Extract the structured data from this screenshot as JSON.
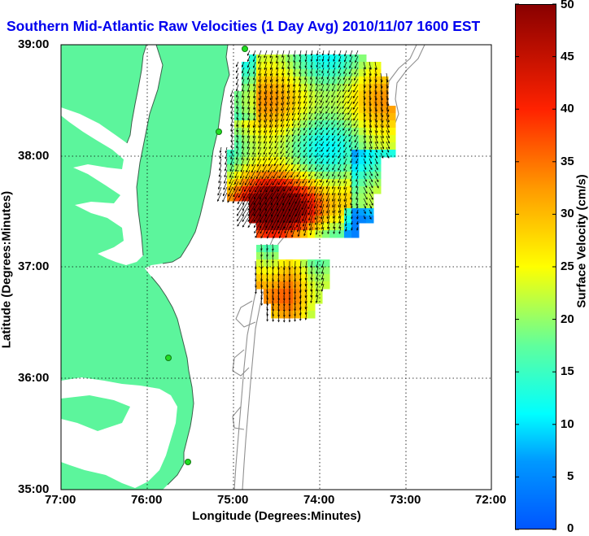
{
  "title": "Southern Mid-Atlantic Raw Velocities (1 Day Avg) 2010/11/07 1600 EST",
  "axes": {
    "xlabel": "Longitude (Degrees:Minutes)",
    "ylabel": "Latitude (Degrees:Minutes)",
    "x_ticks": [
      "77:00",
      "76:00",
      "75:00",
      "74:00",
      "73:00",
      "72:00"
    ],
    "y_ticks": [
      "39:00",
      "38:00",
      "37:00",
      "36:00",
      "35:00"
    ]
  },
  "colorbar": {
    "label": "Surface Velocity (cm/s)",
    "ticks": [
      "0",
      "5",
      "10",
      "15",
      "20",
      "25",
      "30",
      "35",
      "40",
      "45",
      "50"
    ],
    "min": 0,
    "max": 50
  },
  "colors": {
    "land": "#5cf59c",
    "ocean": "#ffffff",
    "coastline": "#3b5f4a",
    "bathymetry_contour": "#909090",
    "vector": "#000000",
    "station": "#22dd22",
    "title": "#0000ee"
  },
  "chart_data": {
    "type": "heatmap",
    "title": "Southern Mid-Atlantic Raw Velocities (1 Day Avg) 2010/11/07 1600 EST",
    "xlabel": "Longitude (Degrees:Minutes)",
    "ylabel": "Latitude (Degrees:Minutes)",
    "x_range_deg": [
      -77,
      -72
    ],
    "y_range_deg": [
      35,
      39
    ],
    "grid": true,
    "colorbar_label": "Surface Velocity (cm/s)",
    "colorbar_range": [
      0,
      50
    ],
    "stations": [
      {
        "lon": -75.1,
        "lat": 38.98
      },
      {
        "lon": -75.15,
        "lat": 38.23
      },
      {
        "lon": -75.75,
        "lat": 36.18
      },
      {
        "lon": -75.52,
        "lat": 35.24
      }
    ],
    "velocity_regions": [
      {
        "name": "northern field",
        "lon_range": [
          -75.0,
          -72.9
        ],
        "lat_range": [
          37.3,
          38.95
        ],
        "speed_range_cm_s": [
          5,
          45
        ],
        "dominant_direction": "south-southwest",
        "core": {
          "lon": -74.6,
          "lat": 37.5,
          "speed_cm_s": 45
        }
      },
      {
        "name": "southern field",
        "lon_range": [
          -74.8,
          -73.8
        ],
        "lat_range": [
          36.6,
          37.2
        ],
        "speed_range_cm_s": [
          20,
          40
        ],
        "dominant_direction": "south"
      }
    ]
  }
}
